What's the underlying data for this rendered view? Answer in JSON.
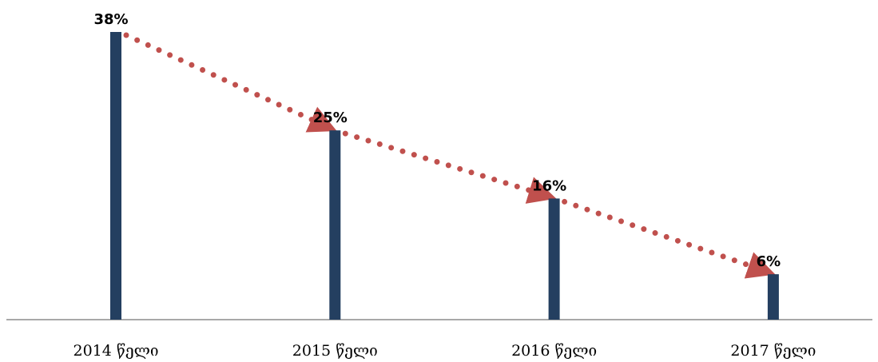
{
  "chart_data": {
    "type": "bar",
    "categories": [
      "2014 წელი",
      "2015 წელი",
      "2016 წელი",
      "2017 წელი"
    ],
    "values": [
      38,
      25,
      16,
      6
    ],
    "value_labels": [
      "38%",
      "25%",
      "16%",
      "6%"
    ],
    "color": "#243f60",
    "trend_color": "#c0504d",
    "ylim": [
      0,
      38
    ]
  }
}
